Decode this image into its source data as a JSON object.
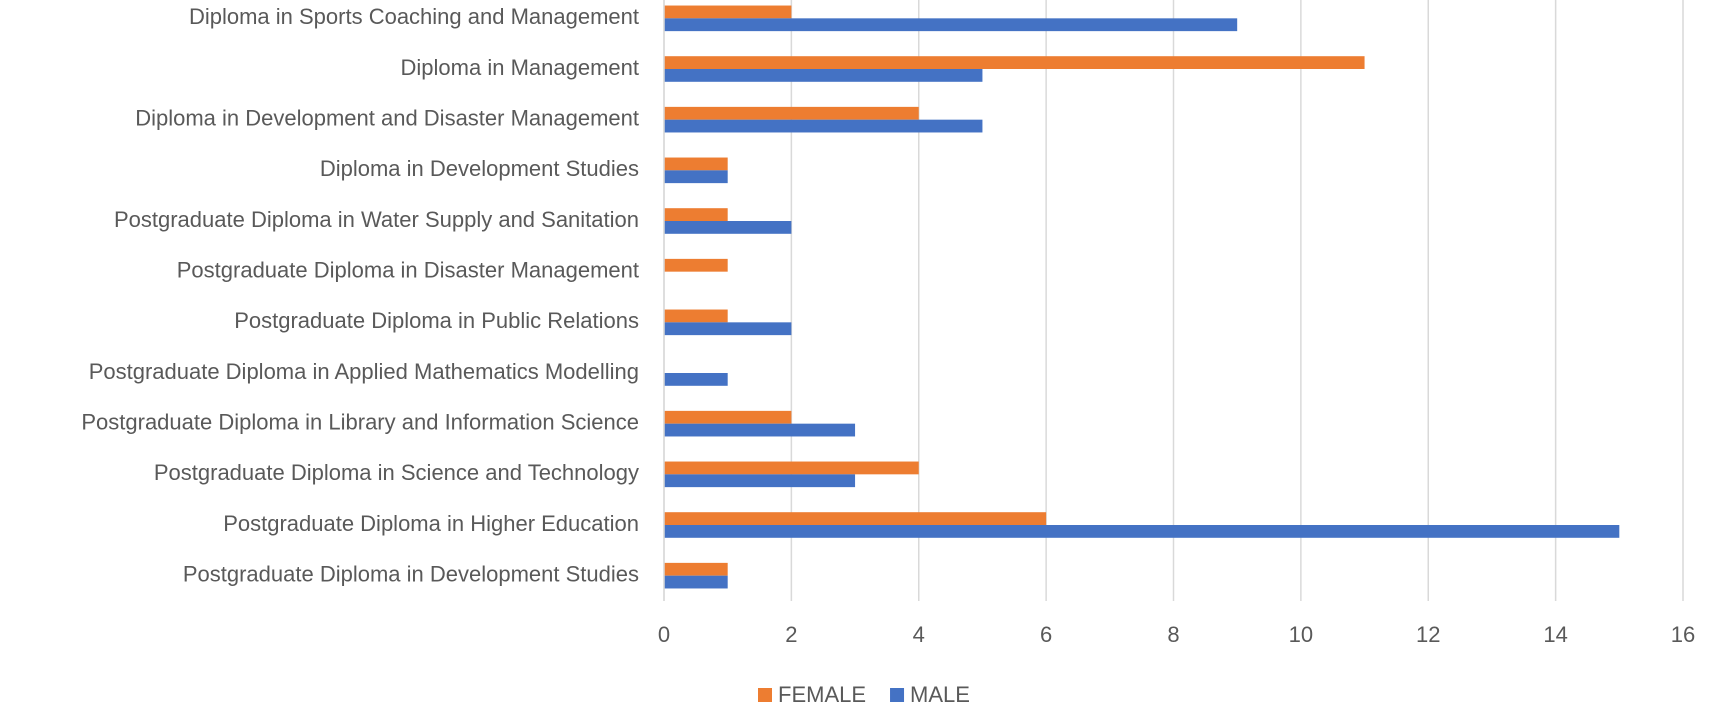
{
  "chart_data": {
    "type": "hbar",
    "categories": [
      "Diploma in Sports Coaching and Management",
      "Diploma in Management",
      "Diploma in Development and Disaster Management",
      "Diploma in Development Studies",
      "Postgraduate Diploma in Water Supply and Sanitation",
      "Postgraduate Diploma in Disaster Management",
      "Postgraduate Diploma in Public Relations",
      "Postgraduate Diploma in Applied Mathematics Modelling",
      "Postgraduate Diploma in Library and Information Science",
      "Postgraduate Diploma in Science and Technology",
      "Postgraduate Diploma in Higher Education",
      "Postgraduate Diploma in Development Studies"
    ],
    "series": [
      {
        "name": "FEMALE",
        "color": "#ed7d31",
        "values": [
          2,
          11,
          4,
          1,
          1,
          1,
          1,
          0,
          2,
          4,
          6,
          1
        ]
      },
      {
        "name": "MALE",
        "color": "#4472c4",
        "values": [
          9,
          5,
          5,
          1,
          2,
          0,
          2,
          1,
          3,
          3,
          15,
          1
        ]
      }
    ],
    "xlim": [
      0,
      16
    ],
    "xticks": [
      0,
      2,
      4,
      6,
      8,
      10,
      12,
      14,
      16
    ],
    "grid": true,
    "legend": "bottom"
  }
}
